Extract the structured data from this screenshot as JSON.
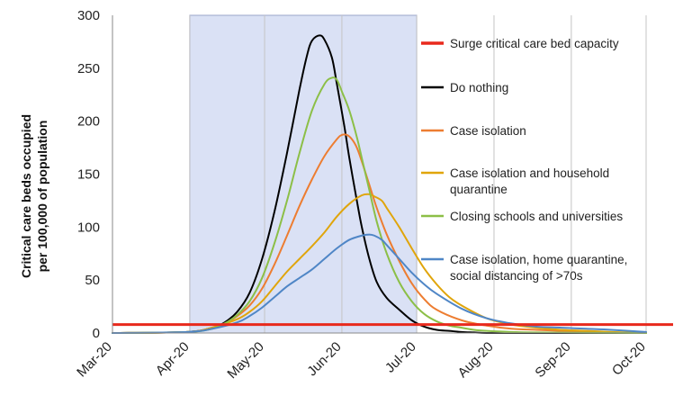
{
  "chart_data": {
    "type": "line",
    "title": "",
    "xlabel": "",
    "ylabel": "Critical care beds occupied per 100,000 of population",
    "ylabel_lines": [
      "Critical care beds occupied",
      "per 100,000 of population"
    ],
    "ylim": [
      0,
      300
    ],
    "y_ticks": [
      0,
      50,
      100,
      150,
      200,
      250,
      300
    ],
    "x_range": [
      0,
      214
    ],
    "x_ticks": [
      {
        "label": "Mar-20",
        "x": 0
      },
      {
        "label": "Apr-20",
        "x": 31
      },
      {
        "label": "May-20",
        "x": 61
      },
      {
        "label": "Jun-20",
        "x": 92
      },
      {
        "label": "Jul-20",
        "x": 122
      },
      {
        "label": "Aug-20",
        "x": 153
      },
      {
        "label": "Sep-20",
        "x": 184
      },
      {
        "label": "Oct-20",
        "x": 214
      }
    ],
    "grid": "vertical",
    "legend_position": "right",
    "intervention_period": {
      "start": 31,
      "end": 122,
      "color": "#dae1f5",
      "border": "#9ba6c9"
    },
    "capacity": {
      "name": "Surge critical care bed capacity",
      "value": 8,
      "color": "#e8291c"
    },
    "series": [
      {
        "name": "Do nothing",
        "color": "#000000",
        "x": [
          0,
          30,
          40,
          45,
          50,
          55,
          60,
          65,
          70,
          75,
          78,
          80,
          83,
          85,
          88,
          90,
          93,
          95,
          98,
          100,
          103,
          106,
          110,
          115,
          120,
          125,
          130,
          135,
          140,
          145,
          150,
          160,
          170,
          214
        ],
        "y": [
          0,
          1,
          5,
          10,
          20,
          38,
          70,
          115,
          170,
          230,
          262,
          276,
          281,
          277,
          260,
          235,
          195,
          165,
          125,
          100,
          70,
          48,
          33,
          22,
          12,
          6,
          3,
          2,
          1,
          0.5,
          0,
          0,
          0,
          0
        ]
      },
      {
        "name": "Case isolation",
        "color": "#ed7d31",
        "x": [
          0,
          30,
          40,
          45,
          50,
          55,
          60,
          65,
          70,
          75,
          80,
          85,
          90,
          92,
          94,
          96,
          98,
          100,
          103,
          106,
          110,
          115,
          120,
          125,
          130,
          140,
          150,
          160,
          170,
          180,
          190,
          200,
          214
        ],
        "y": [
          0,
          1,
          5,
          9,
          16,
          26,
          42,
          65,
          92,
          120,
          145,
          167,
          183,
          187,
          187,
          183,
          175,
          162,
          140,
          118,
          93,
          68,
          47,
          32,
          22,
          12,
          7,
          4,
          3,
          2,
          1,
          0.5,
          0
        ]
      },
      {
        "name": "Case isolation and household quarantine",
        "color": "#e0a50b",
        "x": [
          0,
          30,
          40,
          50,
          55,
          60,
          65,
          70,
          75,
          80,
          85,
          90,
          95,
          100,
          103,
          105,
          108,
          110,
          115,
          120,
          125,
          130,
          135,
          140,
          150,
          160,
          170,
          180,
          190,
          200,
          214
        ],
        "y": [
          0,
          1,
          5,
          13,
          20,
          30,
          44,
          58,
          70,
          82,
          95,
          110,
          122,
          130,
          131,
          129,
          125,
          118,
          100,
          80,
          61,
          46,
          34,
          26,
          14,
          8,
          5,
          3,
          2,
          1,
          0
        ]
      },
      {
        "name": "Closing schools and universities",
        "color": "#8cbf47",
        "x": [
          0,
          30,
          40,
          45,
          50,
          55,
          60,
          65,
          70,
          75,
          80,
          85,
          88,
          90,
          92,
          95,
          98,
          100,
          103,
          106,
          110,
          115,
          120,
          125,
          130,
          135,
          140,
          145,
          150,
          160,
          170,
          214
        ],
        "y": [
          0,
          1,
          4,
          9,
          17,
          30,
          52,
          85,
          125,
          170,
          210,
          235,
          241,
          239,
          228,
          210,
          185,
          165,
          135,
          105,
          75,
          48,
          30,
          18,
          11,
          7,
          5,
          3,
          2,
          1,
          0.5,
          0
        ]
      },
      {
        "name": "Case isolation, home quarantine, social distancing of >70s",
        "color": "#4f86c6",
        "x": [
          0,
          30,
          40,
          50,
          55,
          60,
          65,
          70,
          75,
          80,
          85,
          90,
          95,
          100,
          103,
          105,
          108,
          110,
          115,
          120,
          125,
          130,
          140,
          150,
          160,
          170,
          180,
          190,
          200,
          214
        ],
        "y": [
          0,
          1,
          4,
          10,
          16,
          24,
          34,
          44,
          52,
          60,
          70,
          80,
          88,
          92,
          93,
          92,
          88,
          83,
          70,
          57,
          46,
          37,
          23,
          14,
          9,
          6,
          5,
          4,
          3,
          1
        ]
      }
    ]
  }
}
